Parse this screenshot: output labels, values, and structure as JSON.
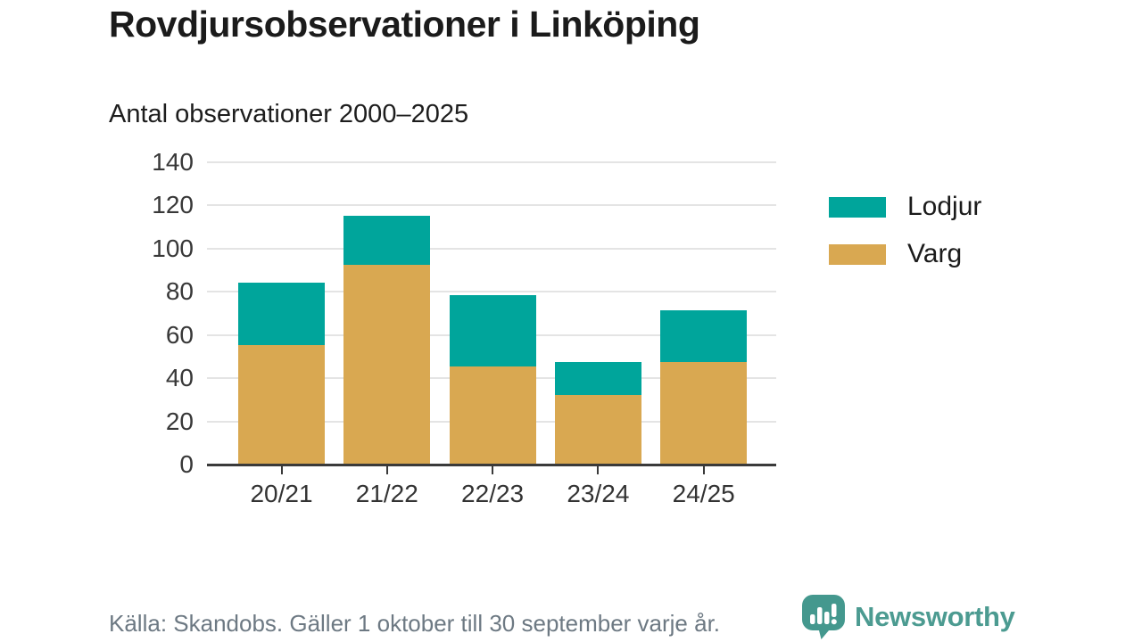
{
  "header": {
    "title": "Rovdjursobservationer i Linköping",
    "subtitle": "Antal observationer 2000–2025"
  },
  "footer": {
    "source": "Källa: Skandobs. Gäller 1 oktober till 30 september varje år.",
    "brand": "Newsworthy"
  },
  "colors": {
    "lodjur": "#00a59b",
    "varg": "#d9a851",
    "axis": "#3a3a3a",
    "grid": "#e4e4e4",
    "muted_text": "#6d7983",
    "brand_teal": "#4c9b91",
    "logo_bubble": "#44988e"
  },
  "chart_data": {
    "type": "bar",
    "stacked": true,
    "title": "Rovdjursobservationer i Linköping",
    "subtitle": "Antal observationer 2000–2025",
    "categories": [
      "20/21",
      "21/22",
      "22/23",
      "23/24",
      "24/25"
    ],
    "series": [
      {
        "name": "Lodjur",
        "color": "#00a59b",
        "values": [
          29,
          23,
          33,
          15,
          24
        ]
      },
      {
        "name": "Varg",
        "color": "#d9a851",
        "values": [
          55,
          92,
          45,
          32,
          47
        ]
      }
    ],
    "stack_bottom_to_top": [
      "Varg",
      "Lodjur"
    ],
    "totals": [
      84,
      115,
      78,
      47,
      71
    ],
    "xlabel": "",
    "ylabel": "",
    "ylim": [
      0,
      140
    ],
    "ytick_step": 20,
    "grid": true,
    "legend_position": "right"
  }
}
